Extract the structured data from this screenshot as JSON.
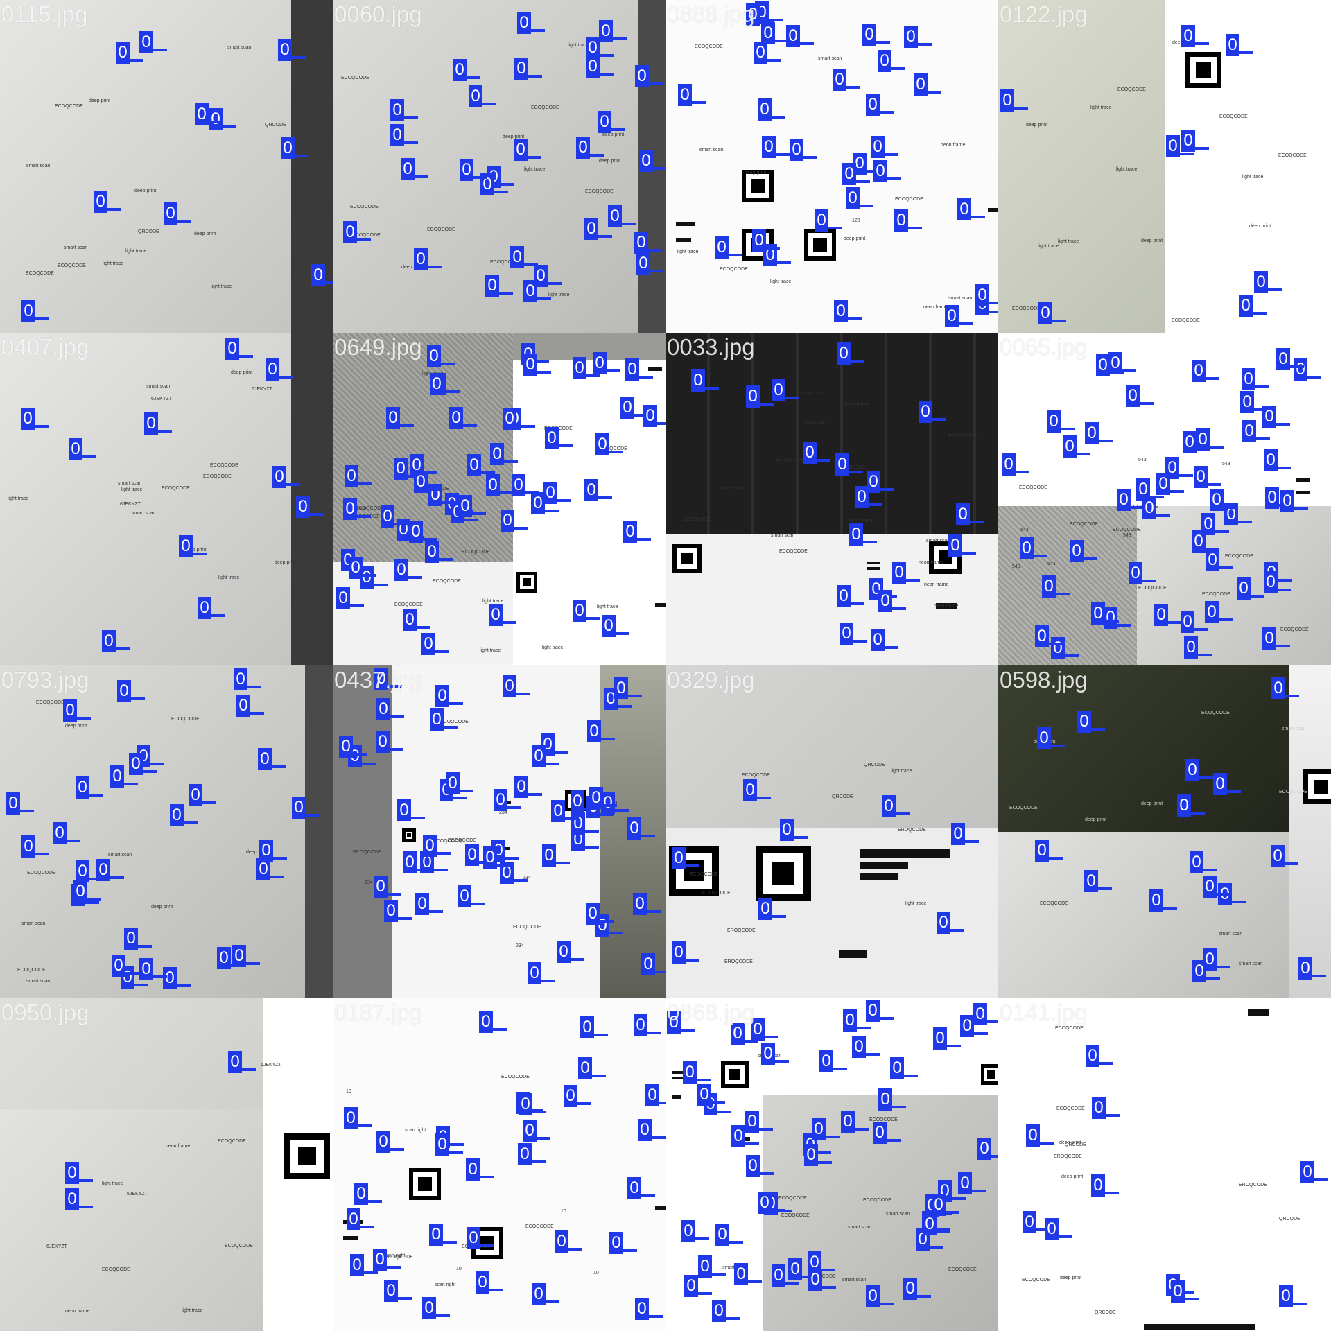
{
  "grid": {
    "columns": 4,
    "rows": 4,
    "class_label": "0",
    "detection_color": "#1f38e8",
    "tiles": [
      {
        "filename": "0115.jpg",
        "theme": "paper-gray",
        "texts": [
          "smart scan",
          "light trace",
          "deep print",
          "ECOQCODE",
          "QRCODE"
        ]
      },
      {
        "filename": "0060.jpg",
        "theme": "paper-form",
        "texts": [
          "ECOQCODE",
          "deep print",
          "light trace",
          "ECOQCODE"
        ]
      },
      {
        "filename": "0888.jpg",
        "theme": "white-codes",
        "texts": [
          "ECOQCODE",
          "smart scan",
          "light trace",
          "neon frame",
          "deep print",
          "123"
        ]
      },
      {
        "filename": "0122.jpg",
        "theme": "split-paper-white",
        "texts": [
          "ECOQCODE",
          "light trace",
          "deep print"
        ]
      },
      {
        "filename": "0407.jpg",
        "theme": "paper-gray",
        "texts": [
          "smart scan",
          "ECOQCODE",
          "6JEKYZT",
          "deep print",
          "light trace"
        ]
      },
      {
        "filename": "0649.jpg",
        "theme": "fabric-white",
        "texts": [
          "ECOQCODE",
          "light trace"
        ]
      },
      {
        "filename": "0033.jpg",
        "theme": "keyboard-white",
        "texts": [
          "ECOQCODE",
          "neon frame",
          "smart scan"
        ]
      },
      {
        "filename": "0065.jpg",
        "theme": "white-fabric",
        "texts": [
          "ECOQCODE",
          "543"
        ]
      },
      {
        "filename": "0793.jpg",
        "theme": "paper-form",
        "texts": [
          "ECOQCODE",
          "smart scan",
          "deep print"
        ]
      },
      {
        "filename": "0437.jpg",
        "theme": "white-strip",
        "texts": [
          "ECOQCODE",
          "234"
        ]
      },
      {
        "filename": "0329.jpg",
        "theme": "paper-codes",
        "texts": [
          "EROQCODE",
          "ECOQCODE",
          "QRCODE",
          "light trace"
        ]
      },
      {
        "filename": "0598.jpg",
        "theme": "dark-photo",
        "texts": [
          "ECOQCODE",
          "smart scan",
          "deep print"
        ]
      },
      {
        "filename": "0950.jpg",
        "theme": "paper-gray-qr",
        "texts": [
          "ECOQCODE",
          "6JEKYZT",
          "light trace",
          "neon frame"
        ]
      },
      {
        "filename": "0187.jpg",
        "theme": "white-codes",
        "texts": [
          "ECOQCODE",
          "10",
          "scan right"
        ]
      },
      {
        "filename": "0868.jpg",
        "theme": "white-paper-form",
        "texts": [
          "ECOQCODE",
          "smart scan"
        ]
      },
      {
        "filename": "0141.jpg",
        "theme": "white-sparse",
        "texts": [
          "ECOQCODE",
          "deep print",
          "QRCODE",
          "EROQCODE"
        ]
      }
    ]
  }
}
